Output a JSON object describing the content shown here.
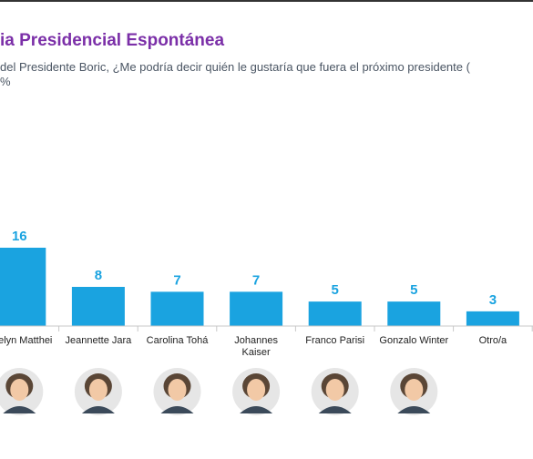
{
  "header": {
    "title": "ia Presidencial Espontánea",
    "subtitle_line1": "del Presidente Boric, ¿Me podría decir quién le gustaría que fuera el próximo presidente (",
    "subtitle_line2": "%"
  },
  "colors": {
    "bar": "#1aa3e0",
    "value_label": "#1aa3e0",
    "title": "#7b2fa8",
    "axis": "#c8c8c8"
  },
  "chart_data": {
    "type": "bar",
    "title": "ia Presidencial Espontánea",
    "xlabel": "",
    "ylabel": "",
    "categories": [
      [
        "Evelyn Matthei"
      ],
      [
        "Jeannette Jara"
      ],
      [
        "Carolina Tohá"
      ],
      [
        "Johannes",
        "Kaiser"
      ],
      [
        "Franco Parisi"
      ],
      [
        "Gonzalo Winter"
      ],
      [
        "Otro/a"
      ]
    ],
    "values": [
      16,
      8,
      7,
      7,
      5,
      5,
      3
    ],
    "value_labels": [
      "16",
      "8",
      "7",
      "7",
      "5",
      "5",
      "3"
    ],
    "ylim": [
      0,
      16
    ],
    "grid": false,
    "legend": "none",
    "avatars": [
      "candidate-photo",
      "candidate-photo",
      "candidate-photo",
      "candidate-photo",
      "candidate-photo",
      "candidate-photo",
      null
    ]
  }
}
